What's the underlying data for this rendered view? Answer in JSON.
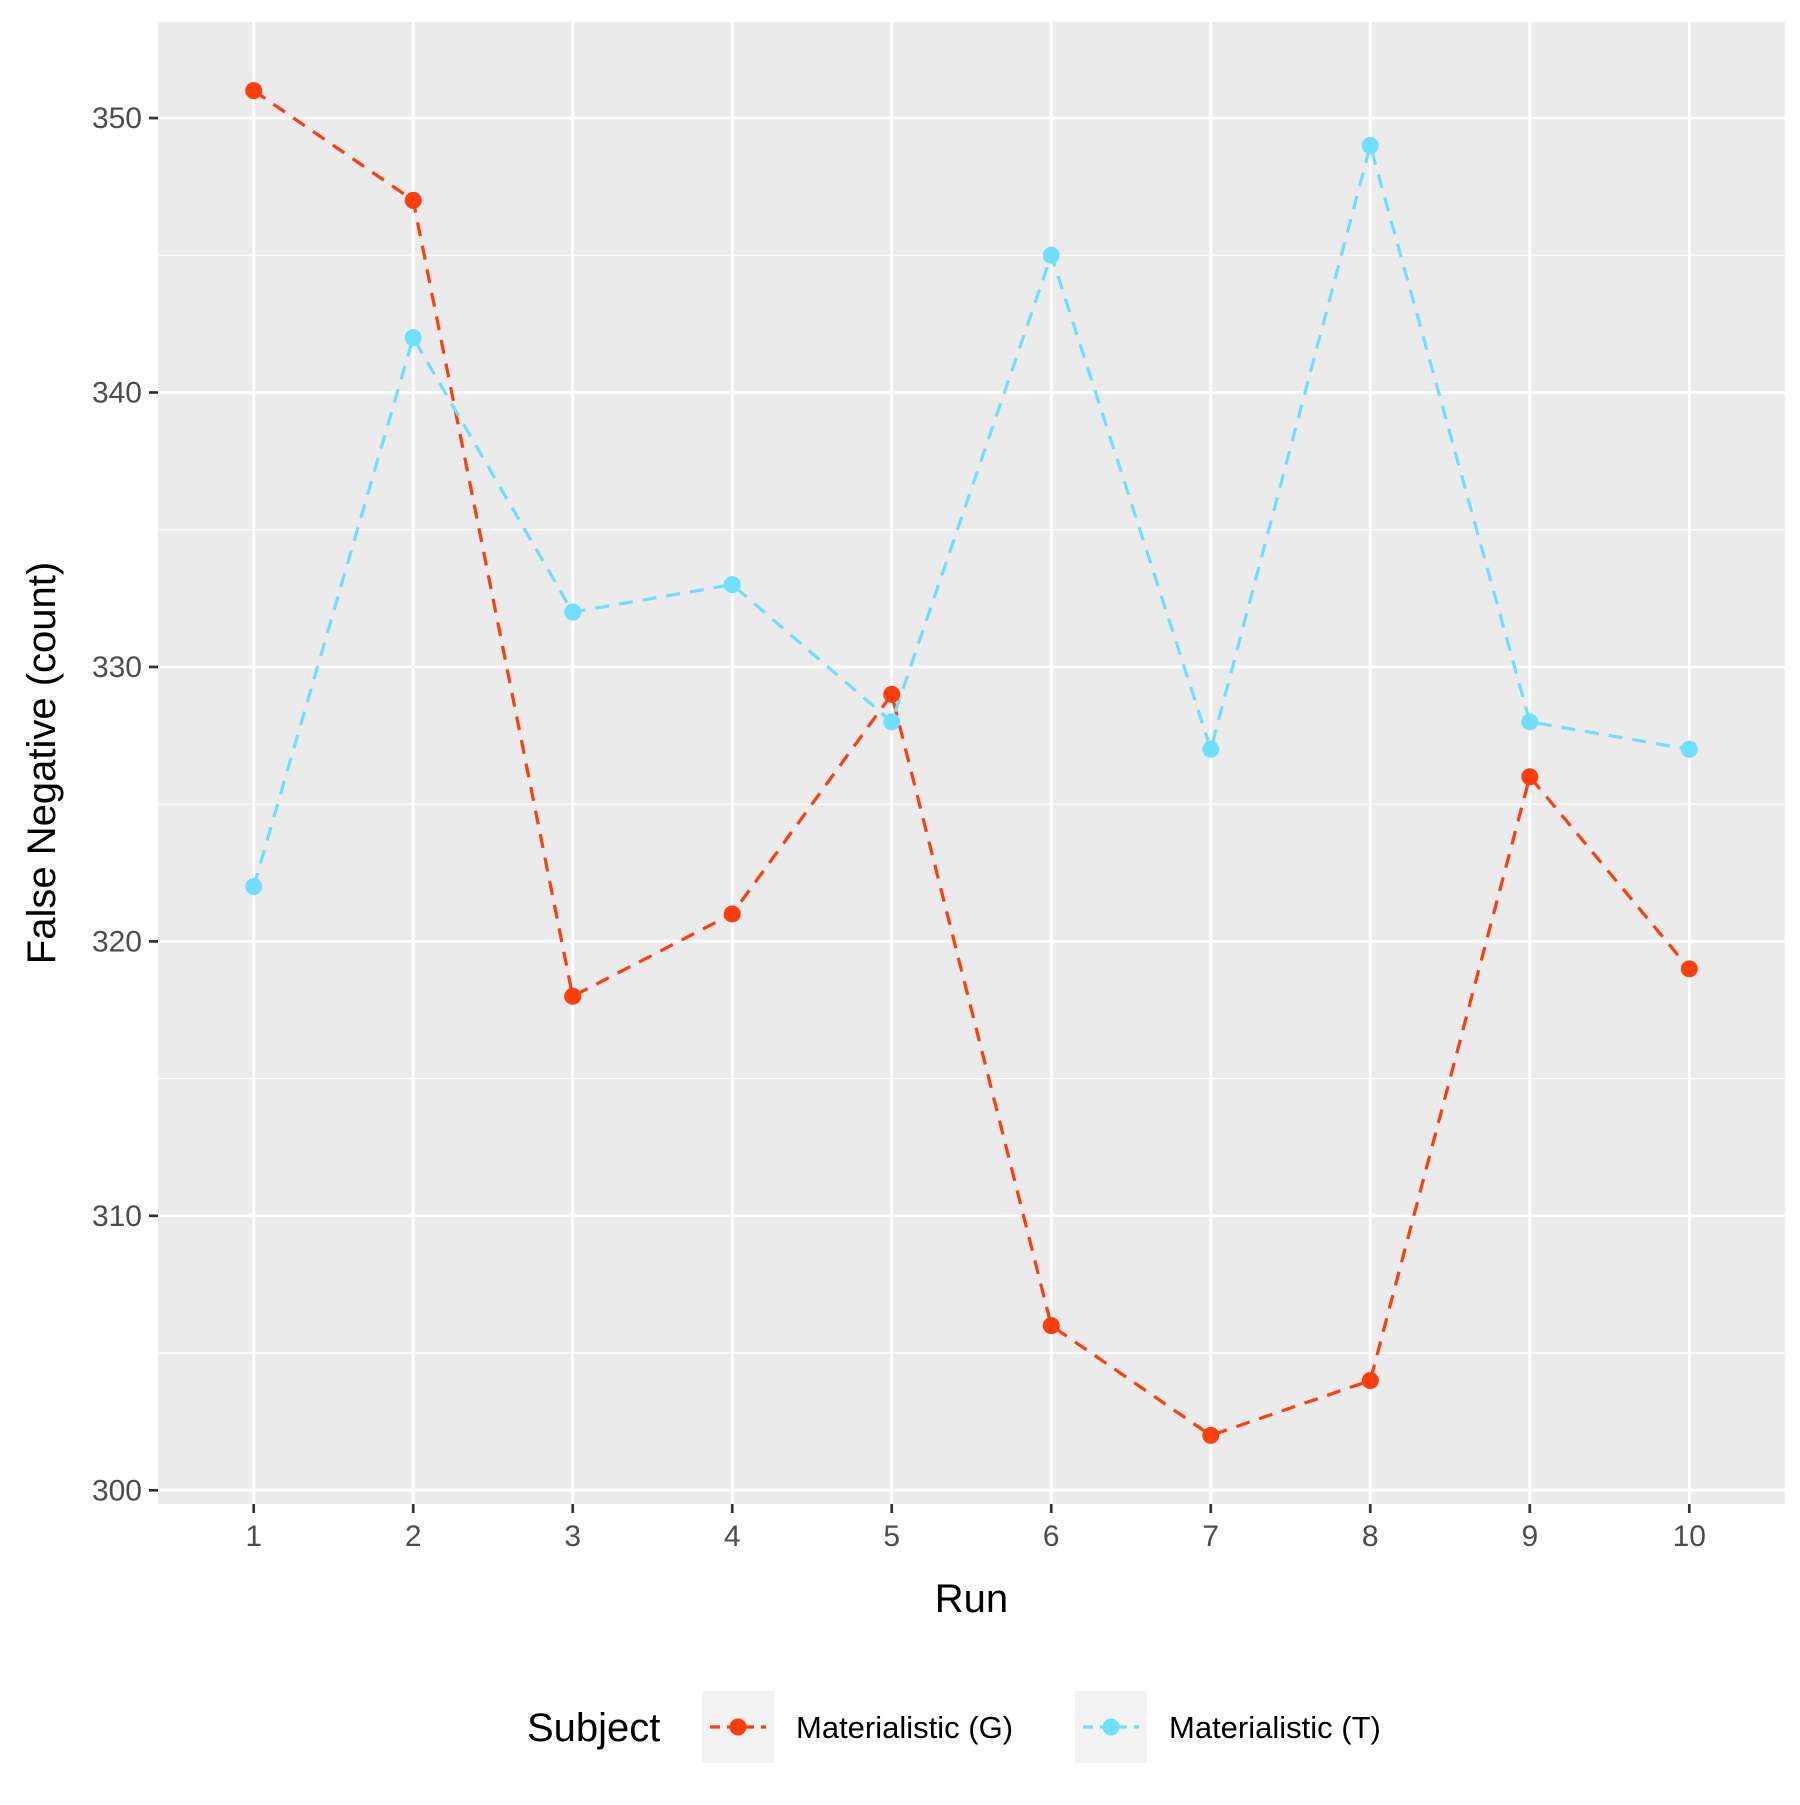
{
  "chart_data": {
    "type": "line",
    "x": [
      1,
      2,
      3,
      4,
      5,
      6,
      7,
      8,
      9,
      10
    ],
    "x_ticks": [
      "1",
      "2",
      "3",
      "4",
      "5",
      "6",
      "7",
      "8",
      "9",
      "10"
    ],
    "y_ticks": [
      "300",
      "310",
      "320",
      "330",
      "340",
      "350"
    ],
    "xlim": [
      0.4,
      10.6
    ],
    "ylim": [
      299.5,
      353.5
    ],
    "xlabel": "Run",
    "ylabel": "False Negative (count)",
    "legend_title": "Subject",
    "legend_position": "bottom",
    "grid": true,
    "line_style": "dashed",
    "series": [
      {
        "name": "Materialistic (G)",
        "color": "#FF3D0D",
        "values": [
          351,
          347,
          318,
          321,
          329,
          306,
          302,
          304,
          326,
          319
        ]
      },
      {
        "name": "Materialistic (T)",
        "color": "#6EDFFF",
        "values": [
          322,
          342,
          332,
          333,
          328,
          345,
          327,
          349,
          328,
          327
        ]
      }
    ],
    "panel_background": "#EBEBEB",
    "gridline_color": "#FFFFFF"
  }
}
